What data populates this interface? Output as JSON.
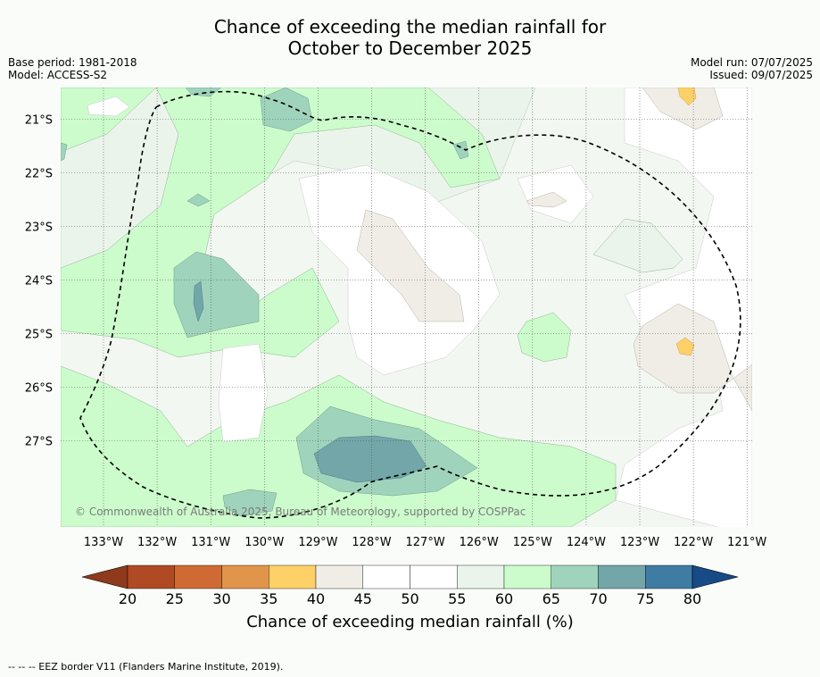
{
  "title": {
    "line1": "Chance of exceeding the median rainfall for",
    "line2": "October to December 2025"
  },
  "meta": {
    "base_period": "Base period: 1981-2018",
    "model": "Model: ACCESS-S2",
    "model_run": "Model run: 07/07/2025",
    "issued": "Issued: 09/07/2025"
  },
  "map": {
    "lon_labels": [
      "133°W",
      "132°W",
      "131°W",
      "130°W",
      "129°W",
      "128°W",
      "127°W",
      "126°W",
      "125°W",
      "124°W",
      "123°W",
      "122°W",
      "121°W"
    ],
    "lat_labels": [
      "21°S",
      "22°S",
      "23°S",
      "24°S",
      "25°S",
      "26°S",
      "27°S"
    ],
    "copyright": "© Commonwealth of Australia 2025, Bureau of Meteorology, supported by COSPPac"
  },
  "colorbar": {
    "ticks": [
      "20",
      "25",
      "30",
      "35",
      "40",
      "45",
      "50",
      "55",
      "60",
      "65",
      "70",
      "75",
      "80"
    ],
    "colors": [
      "#8f3a1c",
      "#b04a25",
      "#cf6a34",
      "#e1954a",
      "#fdd068",
      "#f0ede6",
      "#ffffff",
      "#ffffff",
      "#ebf4eb",
      "#ccfccc",
      "#9fd3bc",
      "#73a6a8",
      "#3f7ca3",
      "#174a86"
    ],
    "label": "Chance of exceeding median rainfall (%)"
  },
  "footer": "-- -- -- EEZ border V11 (Flanders Marine Institute, 2019)."
}
